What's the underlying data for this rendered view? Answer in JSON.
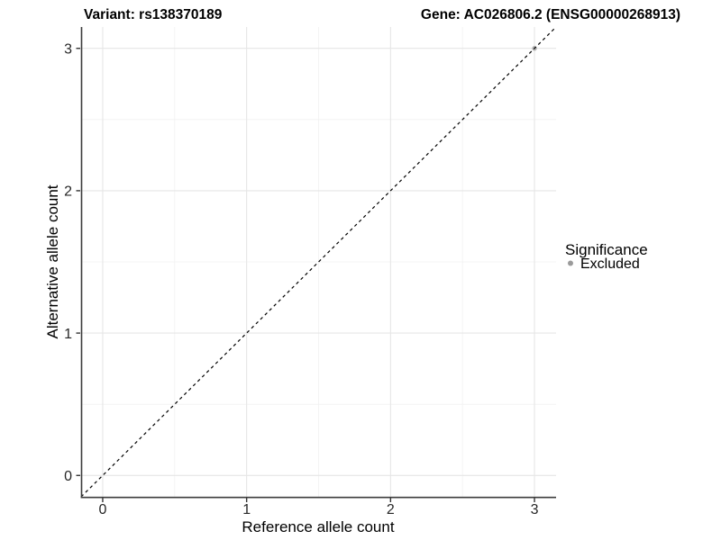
{
  "chart_data": {
    "type": "scatter",
    "title_left": "Variant: rs138370189",
    "title_right": "Gene: AC026806.2 (ENSG00000268913)",
    "xlabel": "Reference allele count",
    "ylabel": "Alternative allele count",
    "xlim": [
      -0.15,
      3.15
    ],
    "ylim": [
      -0.15,
      3.15
    ],
    "x_ticks": [
      0,
      1,
      2,
      3
    ],
    "y_ticks": [
      0,
      1,
      2,
      3
    ],
    "minor_ticks": [
      0.5,
      1.5,
      2.5
    ],
    "grid": true,
    "identity_line": {
      "type": "abline",
      "slope": 1,
      "intercept": 0,
      "style": "dashed",
      "color": "#000000"
    },
    "series": [
      {
        "name": "Excluded",
        "color": "#a6a6a6",
        "opacity": 0.85,
        "points": [
          {
            "x": 3,
            "y": 3
          }
        ]
      }
    ],
    "legend": {
      "title": "Significance",
      "position": "right",
      "entries": [
        {
          "label": "Excluded",
          "color": "#9b9b9b"
        }
      ]
    },
    "colors": {
      "axis_line": "#3c3c3c",
      "tick_mark": "#333333",
      "major_grid": "#e6e6e6",
      "minor_grid": "#f1f1f1",
      "background": "#ffffff"
    }
  }
}
